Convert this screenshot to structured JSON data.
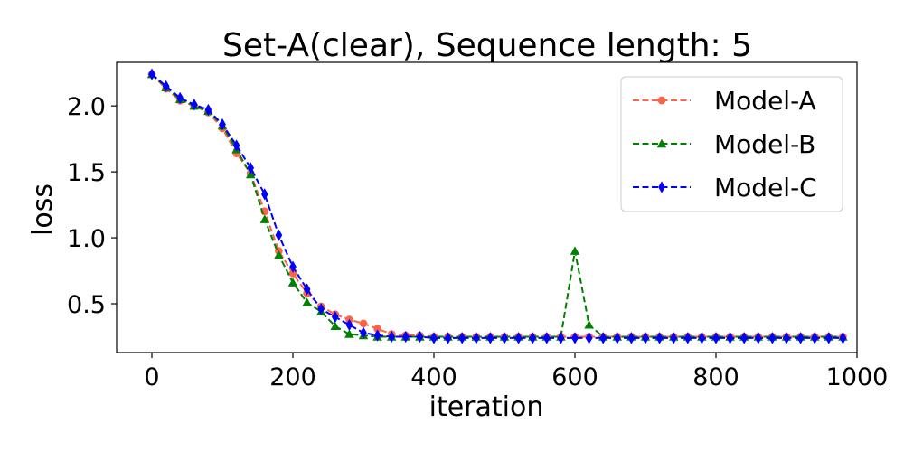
{
  "chart_data": {
    "type": "line",
    "title": "Set-A(clear), Sequence length: 5",
    "xlabel": "iteration",
    "ylabel": "loss",
    "xlim": [
      -50,
      1000
    ],
    "ylim": [
      0.13,
      2.33
    ],
    "xticks": [
      0,
      200,
      400,
      600,
      800,
      1000
    ],
    "yticks": [
      0.5,
      1.0,
      1.5,
      2.0
    ],
    "xtick_labels": [
      "0",
      "200",
      "400",
      "600",
      "800",
      "1000"
    ],
    "ytick_labels": [
      "0.5",
      "1.0",
      "1.5",
      "2.0"
    ],
    "grid": false,
    "legend_position": "top-right",
    "x": [
      0,
      20,
      40,
      60,
      80,
      100,
      120,
      140,
      160,
      180,
      200,
      220,
      240,
      260,
      280,
      300,
      320,
      340,
      360,
      380,
      400,
      420,
      440,
      460,
      480,
      500,
      520,
      540,
      560,
      580,
      600,
      620,
      640,
      660,
      680,
      700,
      720,
      740,
      760,
      780,
      800,
      820,
      840,
      860,
      880,
      900,
      920,
      940,
      960,
      980
    ],
    "series": [
      {
        "name": "Model-A",
        "color": "#ff6347",
        "marker": "circle",
        "values": [
          2.24,
          2.13,
          2.04,
          2.0,
          1.95,
          1.83,
          1.64,
          1.49,
          1.2,
          0.9,
          0.73,
          0.58,
          0.48,
          0.42,
          0.38,
          0.35,
          0.31,
          0.27,
          0.26,
          0.26,
          0.25,
          0.25,
          0.25,
          0.25,
          0.25,
          0.25,
          0.25,
          0.25,
          0.25,
          0.25,
          0.25,
          0.25,
          0.25,
          0.25,
          0.25,
          0.25,
          0.25,
          0.25,
          0.25,
          0.25,
          0.25,
          0.25,
          0.25,
          0.25,
          0.25,
          0.25,
          0.25,
          0.25,
          0.25,
          0.25
        ]
      },
      {
        "name": "Model-B",
        "color": "#008000",
        "marker": "triangle",
        "values": [
          2.24,
          2.14,
          2.05,
          2.0,
          1.96,
          1.85,
          1.67,
          1.48,
          1.14,
          0.87,
          0.66,
          0.51,
          0.44,
          0.33,
          0.27,
          0.26,
          0.25,
          0.25,
          0.25,
          0.25,
          0.25,
          0.25,
          0.25,
          0.25,
          0.25,
          0.25,
          0.25,
          0.25,
          0.25,
          0.25,
          0.9,
          0.34,
          0.25,
          0.25,
          0.25,
          0.25,
          0.25,
          0.25,
          0.25,
          0.25,
          0.25,
          0.25,
          0.25,
          0.25,
          0.25,
          0.25,
          0.25,
          0.25,
          0.25,
          0.25
        ]
      },
      {
        "name": "Model-C",
        "color": "#0000ff",
        "marker": "diamond",
        "values": [
          2.24,
          2.15,
          2.06,
          2.01,
          1.97,
          1.86,
          1.7,
          1.53,
          1.33,
          1.02,
          0.78,
          0.61,
          0.46,
          0.4,
          0.34,
          0.28,
          0.26,
          0.25,
          0.25,
          0.25,
          0.24,
          0.24,
          0.24,
          0.24,
          0.24,
          0.24,
          0.24,
          0.24,
          0.24,
          0.24,
          0.24,
          0.24,
          0.24,
          0.24,
          0.24,
          0.24,
          0.24,
          0.24,
          0.24,
          0.24,
          0.24,
          0.24,
          0.24,
          0.24,
          0.24,
          0.24,
          0.24,
          0.24,
          0.24,
          0.24
        ]
      }
    ]
  }
}
